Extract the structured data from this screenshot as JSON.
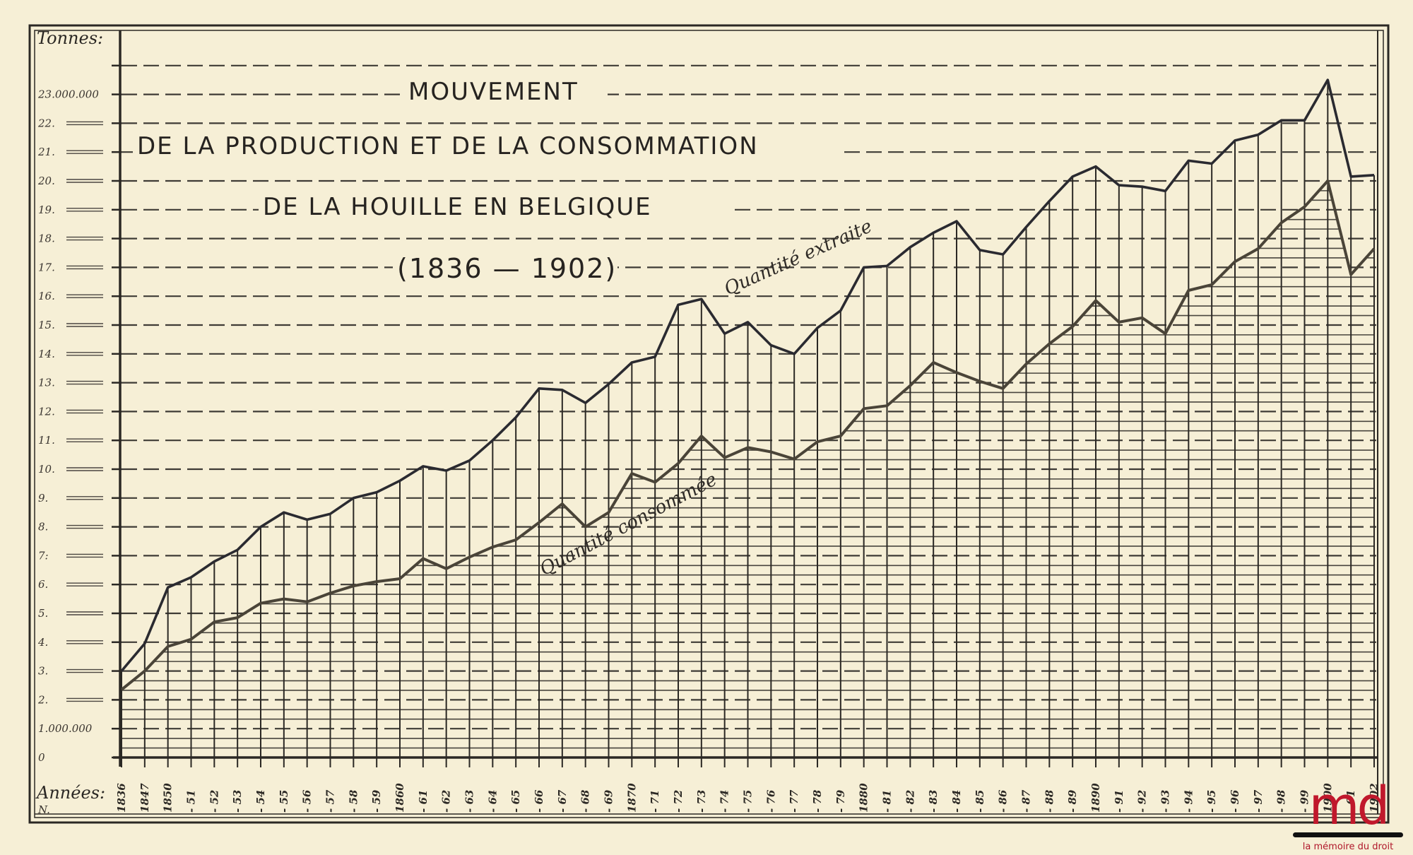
{
  "chart_data": {
    "type": "line",
    "title": "MOUVEMENT DE LA PRODUCTION ET DE LA CONSOMMATION DE LA HOUILLE EN BELGIQUE (1836 — 1902)",
    "title_lines": [
      "MOUVEMENT",
      "DE LA PRODUCTION ET DE LA  CONSOMMATION",
      "DE LA  HOUILLE  EN  BELGIQUE",
      "(1836 — 1902)"
    ],
    "ylabel": "Tonnes:",
    "xlabel": "Années:",
    "xlabel_sub": "N.",
    "ylim": [
      0,
      24
    ],
    "y_unit": "millions of tonnes",
    "y_tick_labels": [
      {
        "v": 0,
        "label": "0"
      },
      {
        "v": 1,
        "label": "1.000.000"
      },
      {
        "v": 2,
        "label": "2."
      },
      {
        "v": 3,
        "label": "3."
      },
      {
        "v": 4,
        "label": "4."
      },
      {
        "v": 5,
        "label": "5."
      },
      {
        "v": 6,
        "label": "6."
      },
      {
        "v": 7,
        "label": "7:"
      },
      {
        "v": 8,
        "label": "8."
      },
      {
        "v": 9,
        "label": "9."
      },
      {
        "v": 10,
        "label": "10."
      },
      {
        "v": 11,
        "label": "11."
      },
      {
        "v": 12,
        "label": "12."
      },
      {
        "v": 13,
        "label": "13."
      },
      {
        "v": 14,
        "label": "14."
      },
      {
        "v": 15,
        "label": "15."
      },
      {
        "v": 16,
        "label": "16."
      },
      {
        "v": 17,
        "label": "17."
      },
      {
        "v": 18,
        "label": "18."
      },
      {
        "v": 19,
        "label": "19."
      },
      {
        "v": 20,
        "label": "20."
      },
      {
        "v": 21,
        "label": "21."
      },
      {
        "v": 22,
        "label": "22."
      },
      {
        "v": 23,
        "label": "23.000.000"
      }
    ],
    "categories": [
      "1836",
      "1847",
      "1850",
      "51",
      "52",
      "53",
      "54",
      "55",
      "56",
      "57",
      "58",
      "59",
      "1860",
      "61",
      "62",
      "63",
      "64",
      "65",
      "66",
      "67",
      "68",
      "69",
      "1870",
      "71",
      "72",
      "73",
      "74",
      "75",
      "76",
      "77",
      "78",
      "79",
      "1880",
      "81",
      "82",
      "83",
      "84",
      "85",
      "86",
      "87",
      "88",
      "89",
      "1890",
      "91",
      "92",
      "93",
      "94",
      "95",
      "96",
      "97",
      "98",
      "99",
      "1900",
      "01",
      "1902"
    ],
    "years": [
      1836,
      1847,
      1850,
      1851,
      1852,
      1853,
      1854,
      1855,
      1856,
      1857,
      1858,
      1859,
      1860,
      1861,
      1862,
      1863,
      1864,
      1865,
      1866,
      1867,
      1868,
      1869,
      1870,
      1871,
      1872,
      1873,
      1874,
      1875,
      1876,
      1877,
      1878,
      1879,
      1880,
      1881,
      1882,
      1883,
      1884,
      1885,
      1886,
      1887,
      1888,
      1889,
      1890,
      1891,
      1892,
      1893,
      1894,
      1895,
      1896,
      1897,
      1898,
      1899,
      1900,
      1901,
      1902
    ],
    "series": [
      {
        "name": "Quantité extraite",
        "color": "#2a2a30",
        "values": [
          3.0,
          3.95,
          5.9,
          6.25,
          6.8,
          7.2,
          8.0,
          8.5,
          8.25,
          8.45,
          9.0,
          9.2,
          9.6,
          10.1,
          9.95,
          10.3,
          11.0,
          11.8,
          12.8,
          12.75,
          12.3,
          12.95,
          13.7,
          13.9,
          15.7,
          15.9,
          14.7,
          15.1,
          14.3,
          14.0,
          14.9,
          15.5,
          17.0,
          17.05,
          17.7,
          18.2,
          18.6,
          17.6,
          17.45,
          18.4,
          19.3,
          20.15,
          20.5,
          19.85,
          19.8,
          19.65,
          20.7,
          20.6,
          21.4,
          21.6,
          22.1,
          22.1,
          23.5,
          20.15,
          20.2
        ]
      },
      {
        "name": "Quantité consommée",
        "color": "#4a4438",
        "values": [
          2.35,
          3.0,
          3.85,
          4.1,
          4.7,
          4.85,
          5.35,
          5.5,
          5.4,
          5.7,
          5.95,
          6.1,
          6.2,
          6.9,
          6.55,
          6.95,
          7.3,
          7.55,
          8.15,
          8.8,
          8.0,
          8.5,
          9.85,
          9.55,
          10.2,
          11.15,
          10.4,
          10.75,
          10.6,
          10.35,
          10.95,
          11.15,
          12.1,
          12.2,
          12.9,
          13.7,
          13.35,
          13.05,
          12.8,
          13.65,
          14.35,
          14.95,
          15.85,
          15.1,
          15.25,
          14.7,
          16.2,
          16.4,
          17.2,
          17.65,
          18.55,
          19.1,
          20.0,
          16.75,
          17.65
        ]
      }
    ],
    "annotations": [
      {
        "text": "Quantité extraite",
        "near": "production curve around 1873–1884"
      },
      {
        "text": "Quantité consommée",
        "near": "consumption curve around 1867–1876"
      }
    ],
    "grid": {
      "major_dashed": true,
      "vertical_per_year": true,
      "hatched_below_consumption": true
    },
    "legend": "inline labels along curves"
  },
  "watermark": {
    "mark": "md",
    "text": "la mémoire du droit",
    "color": "#c0182c"
  }
}
